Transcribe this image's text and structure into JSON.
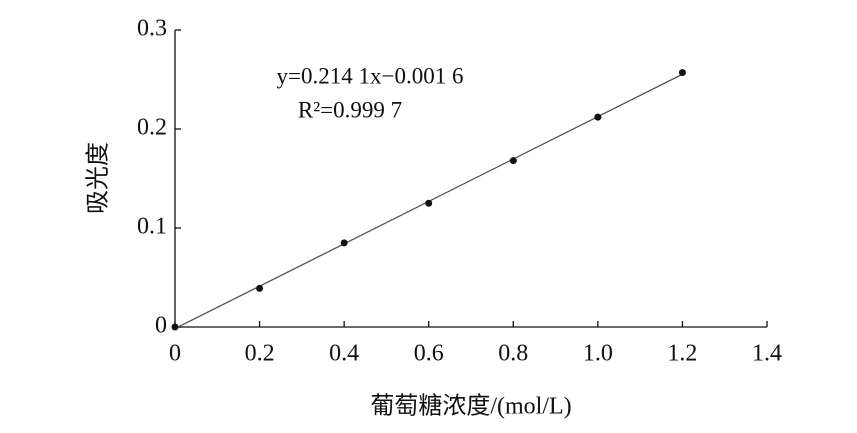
{
  "chart_data": {
    "type": "scatter",
    "x_label": "葡萄糖浓度/(mol/L)",
    "y_label": "吸光度",
    "annotations": [
      "y=0.214 1x−0.001 6",
      "R²=0.999 7"
    ],
    "x": [
      0,
      0.2,
      0.4,
      0.6,
      0.8,
      1.0,
      1.2
    ],
    "values": [
      0,
      0.039,
      0.085,
      0.125,
      0.168,
      0.212,
      0.257
    ],
    "trendline": {
      "slope": 0.2141,
      "intercept": -0.0016
    },
    "color": "#111111",
    "xlim": [
      0,
      1.4
    ],
    "ylim": [
      0,
      0.3
    ],
    "xticks": [
      0,
      0.2,
      0.4,
      0.6,
      0.8,
      {
        "value": 1,
        "label": "1.0"
      },
      1.2,
      1.4
    ],
    "yticks": [
      0,
      0.1,
      0.2,
      0.3
    ],
    "grid": false
  }
}
